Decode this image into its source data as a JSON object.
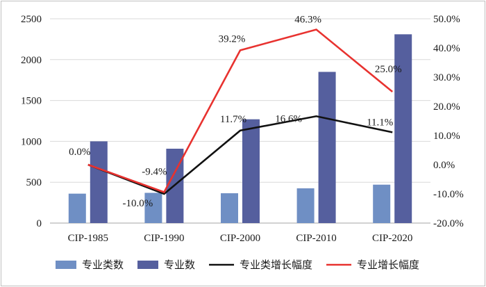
{
  "chart_data": {
    "type": "bar",
    "categories": [
      "CIP-1985",
      "CIP-1990",
      "CIP-2000",
      "CIP-2010",
      "CIP-2020"
    ],
    "series": [
      {
        "name": "专业类数",
        "kind": "bar",
        "axis": "left",
        "color": "#6f8fc4",
        "values": [
          360,
          370,
          365,
          425,
          470
        ]
      },
      {
        "name": "专业数",
        "kind": "bar",
        "axis": "left",
        "color": "#555f9e",
        "values": [
          1000,
          910,
          1270,
          1850,
          2310
        ]
      },
      {
        "name": "专业类增长幅度",
        "kind": "line",
        "axis": "right",
        "color": "#111111",
        "values": [
          0.0,
          -10.0,
          11.7,
          16.6,
          11.1
        ],
        "labels": [
          "",
          "-10.0%",
          "11.7%",
          "16.6%",
          "11.1%"
        ]
      },
      {
        "name": "专业增长幅度",
        "kind": "line",
        "axis": "right",
        "color": "#e8322f",
        "values": [
          0.0,
          -9.4,
          39.2,
          46.3,
          25.0
        ],
        "labels": [
          "0.0%",
          "-9.4%",
          "39.2%",
          "46.3%",
          "25.0%"
        ]
      }
    ],
    "y_left": {
      "min": 0,
      "max": 2500,
      "step": 500,
      "ticks": [
        "0",
        "500",
        "1000",
        "1500",
        "2000",
        "2500"
      ]
    },
    "y_right": {
      "min": -20,
      "max": 50,
      "step": 10,
      "ticks": [
        "-20.0%",
        "-10.0%",
        "0.0%",
        "10.0%",
        "20.0%",
        "30.0%",
        "40.0%",
        "50.0%"
      ]
    },
    "grid": true,
    "legend_position": "bottom"
  }
}
